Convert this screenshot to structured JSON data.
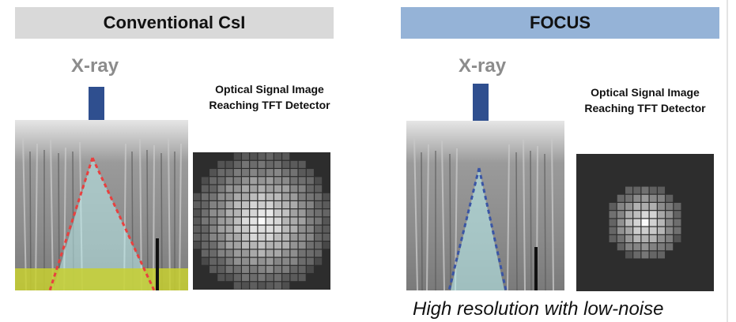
{
  "left_panel": {
    "header": "Conventional CsI",
    "header_color": "#d9d9d9",
    "xray_label": "X-ray",
    "optical_label_line1": "Optical Signal Image",
    "optical_label_line2": "Reaching TFT Detector"
  },
  "right_panel": {
    "header": "FOCUS",
    "header_color": "#95b3d7",
    "xray_label": "X-ray",
    "optical_label_line1": "Optical Signal Image",
    "optical_label_line2": "Reaching TFT Detector",
    "caption": "High resolution with low-noise"
  },
  "colors": {
    "arrow": "#2f4f8f",
    "cone_left": "#e8403f",
    "cone_right": "#3a55a5",
    "yellow_band": "#c8d030"
  }
}
